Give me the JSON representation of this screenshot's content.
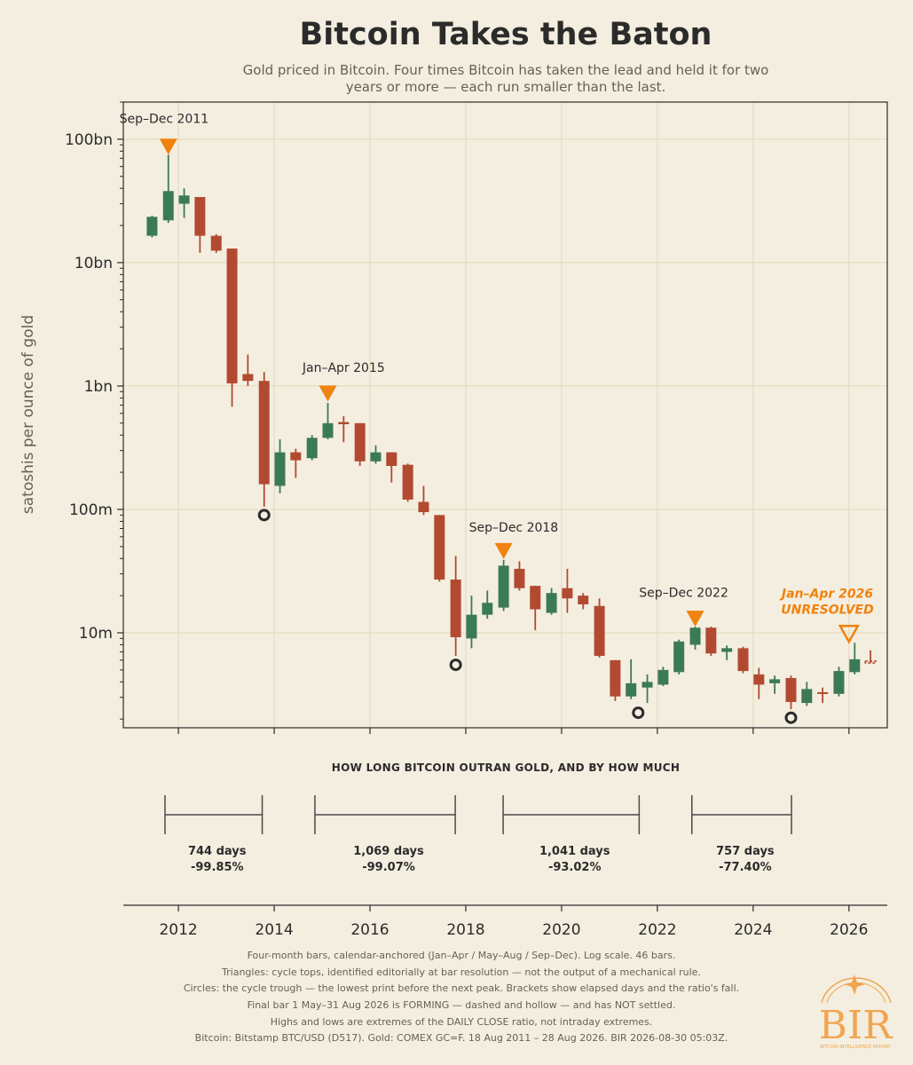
{
  "title": "Bitcoin Takes the Baton",
  "subtitle_lines": [
    "Gold priced in Bitcoin. Four times Bitcoin has taken the lead and held it for two",
    "years or more — each run smaller than the last."
  ],
  "colors": {
    "up": "#3b7a57",
    "down": "#b24a31",
    "peak": "#f0820f",
    "trough": "#2b2b2b",
    "background": "#f4eee0",
    "grid": "#e4d8b8"
  },
  "chart_data": {
    "type": "candlestick",
    "ylabel": "satoshis per ounce of gold",
    "yscale": "log",
    "ylim": [
      1700000.0,
      200000000000.0
    ],
    "xlim": [
      2010.85,
      2026.8
    ],
    "x_ticks": [
      2012,
      2014,
      2016,
      2018,
      2020,
      2022,
      2024,
      2026
    ],
    "x_tick_labels": [
      "2012",
      "2014",
      "2016",
      "2018",
      "2020",
      "2022",
      "2024",
      "2026"
    ],
    "y_ticks": [
      10000000.0,
      100000000.0,
      1000000000.0,
      10000000000.0,
      100000000000.0
    ],
    "y_tick_labels": [
      "10m",
      "100m",
      "1bn",
      "10bn",
      "100bn"
    ],
    "bar_dates": [
      "2011-05",
      "2011-09",
      "2012-01",
      "2012-05",
      "2012-09",
      "2013-01",
      "2013-05",
      "2013-09",
      "2014-01",
      "2014-05",
      "2014-09",
      "2015-01",
      "2015-05",
      "2015-09",
      "2016-01",
      "2016-05",
      "2016-09",
      "2017-01",
      "2017-05",
      "2017-09",
      "2018-01",
      "2018-05",
      "2018-09",
      "2019-01",
      "2019-05",
      "2019-09",
      "2020-01",
      "2020-05",
      "2020-09",
      "2021-01",
      "2021-05",
      "2021-09",
      "2022-01",
      "2022-05",
      "2022-09",
      "2023-01",
      "2023-05",
      "2023-09",
      "2024-01",
      "2024-05",
      "2024-09",
      "2025-01",
      "2025-05",
      "2025-09",
      "2026-01",
      "2026-05"
    ],
    "candles": [
      {
        "x": 2011.45,
        "o": 16500000000.0,
        "h": 24000000000.0,
        "l": 16000000000.0,
        "c": 23500000000.0
      },
      {
        "x": 2011.79,
        "o": 22000000000.0,
        "h": 75000000000.0,
        "l": 21000000000.0,
        "c": 38000000000.0
      },
      {
        "x": 2012.12,
        "o": 30000000000.0,
        "h": 40000000000.0,
        "l": 23000000000.0,
        "c": 35000000000.0
      },
      {
        "x": 2012.45,
        "o": 34000000000.0,
        "h": 34000000000.0,
        "l": 12000000000.0,
        "c": 16500000000.0
      },
      {
        "x": 2012.79,
        "o": 16500000000.0,
        "h": 17000000000.0,
        "l": 12000000000.0,
        "c": 12500000000.0
      },
      {
        "x": 2013.12,
        "o": 13000000000.0,
        "h": 13000000000.0,
        "l": 680000000.0,
        "c": 1050000000.0
      },
      {
        "x": 2013.45,
        "o": 1250000000.0,
        "h": 1800000000.0,
        "l": 1000000000.0,
        "c": 1100000000.0
      },
      {
        "x": 2013.79,
        "o": 1100000000.0,
        "h": 1300000000.0,
        "l": 105000000.0,
        "c": 160000000.0
      },
      {
        "x": 2014.12,
        "o": 155000000.0,
        "h": 370000000.0,
        "l": 135000000.0,
        "c": 290000000.0
      },
      {
        "x": 2014.45,
        "o": 290000000.0,
        "h": 310000000.0,
        "l": 180000000.0,
        "c": 250000000.0
      },
      {
        "x": 2014.79,
        "o": 260000000.0,
        "h": 400000000.0,
        "l": 250000000.0,
        "c": 380000000.0
      },
      {
        "x": 2015.12,
        "o": 380000000.0,
        "h": 730000000.0,
        "l": 370000000.0,
        "c": 500000000.0
      },
      {
        "x": 2015.45,
        "o": 510000000.0,
        "h": 570000000.0,
        "l": 350000000.0,
        "c": 490000000.0
      },
      {
        "x": 2015.79,
        "o": 500000000.0,
        "h": 500000000.0,
        "l": 225000000.0,
        "c": 245000000.0
      },
      {
        "x": 2016.12,
        "o": 245000000.0,
        "h": 330000000.0,
        "l": 235000000.0,
        "c": 290000000.0
      },
      {
        "x": 2016.45,
        "o": 290000000.0,
        "h": 290000000.0,
        "l": 165000000.0,
        "c": 225000000.0
      },
      {
        "x": 2016.79,
        "o": 230000000.0,
        "h": 235000000.0,
        "l": 115000000.0,
        "c": 120000000.0
      },
      {
        "x": 2017.12,
        "o": 115000000.0,
        "h": 155000000.0,
        "l": 90000000.0,
        "c": 95000000.0
      },
      {
        "x": 2017.45,
        "o": 90000000.0,
        "h": 90000000.0,
        "l": 26000000.0,
        "c": 27000000.0
      },
      {
        "x": 2017.79,
        "o": 27000000.0,
        "h": 42000000.0,
        "l": 6500000.0,
        "c": 9200000.0
      },
      {
        "x": 2018.12,
        "o": 9000000.0,
        "h": 20000000.0,
        "l": 7500000.0,
        "c": 14000000.0
      },
      {
        "x": 2018.45,
        "o": 14000000.0,
        "h": 22000000.0,
        "l": 13000000.0,
        "c": 17500000.0
      },
      {
        "x": 2018.79,
        "o": 16000000.0,
        "h": 39000000.0,
        "l": 15000000.0,
        "c": 35000000.0
      },
      {
        "x": 2019.12,
        "o": 33000000.0,
        "h": 38000000.0,
        "l": 22000000.0,
        "c": 23000000.0
      },
      {
        "x": 2019.45,
        "o": 24000000.0,
        "h": 24000000.0,
        "l": 10500000.0,
        "c": 15500000.0
      },
      {
        "x": 2019.79,
        "o": 14500000.0,
        "h": 23000000.0,
        "l": 14000000.0,
        "c": 21000000.0
      },
      {
        "x": 2020.12,
        "o": 23000000.0,
        "h": 33000000.0,
        "l": 14500000.0,
        "c": 19000000.0
      },
      {
        "x": 2020.45,
        "o": 20000000.0,
        "h": 21000000.0,
        "l": 15500000.0,
        "c": 17000000.0
      },
      {
        "x": 2020.79,
        "o": 16500000.0,
        "h": 19000000.0,
        "l": 6300000.0,
        "c": 6500000.0
      },
      {
        "x": 2021.12,
        "o": 6000000.0,
        "h": 6000000.0,
        "l": 2800000.0,
        "c": 3050000.0
      },
      {
        "x": 2021.45,
        "o": 3050000.0,
        "h": 6100000.0,
        "l": 2900000.0,
        "c": 3900000.0
      },
      {
        "x": 2021.79,
        "o": 3600000.0,
        "h": 4600000.0,
        "l": 2700000.0,
        "c": 4000000.0
      },
      {
        "x": 2022.12,
        "o": 3800000.0,
        "h": 5300000.0,
        "l": 3700000.0,
        "c": 5000000.0
      },
      {
        "x": 2022.45,
        "o": 4800000.0,
        "h": 8800000.0,
        "l": 4600000.0,
        "c": 8500000.0
      },
      {
        "x": 2022.79,
        "o": 8000000.0,
        "h": 11200000.0,
        "l": 7300000.0,
        "c": 11000000.0
      },
      {
        "x": 2023.12,
        "o": 11000000.0,
        "h": 11200000.0,
        "l": 6500000.0,
        "c": 6800000.0
      },
      {
        "x": 2023.45,
        "o": 7000000.0,
        "h": 7900000.0,
        "l": 6000000.0,
        "c": 7500000.0
      },
      {
        "x": 2023.79,
        "o": 7500000.0,
        "h": 7700000.0,
        "l": 4700000.0,
        "c": 4900000.0
      },
      {
        "x": 2024.12,
        "o": 4600000.0,
        "h": 5200000.0,
        "l": 2900000.0,
        "c": 3800000.0
      },
      {
        "x": 2024.45,
        "o": 3900000.0,
        "h": 4500000.0,
        "l": 3200000.0,
        "c": 4200000.0
      },
      {
        "x": 2024.79,
        "o": 4300000.0,
        "h": 4500000.0,
        "l": 2400000.0,
        "c": 2750000.0
      },
      {
        "x": 2025.12,
        "o": 2700000.0,
        "h": 4000000.0,
        "l": 2550000.0,
        "c": 3500000.0
      },
      {
        "x": 2025.45,
        "o": 3300000.0,
        "h": 3600000.0,
        "l": 2700000.0,
        "c": 3200000.0
      },
      {
        "x": 2025.79,
        "o": 3200000.0,
        "h": 5300000.0,
        "l": 3050000.0,
        "c": 4900000.0
      },
      {
        "x": 2026.12,
        "o": 4800000.0,
        "h": 8300000.0,
        "l": 4600000.0,
        "c": 6100000.0
      },
      {
        "x": 2026.45,
        "o": 5900000.0,
        "h": 7200000.0,
        "l": 5700000.0,
        "c": 5700000.0,
        "forming": true
      }
    ],
    "peaks": [
      {
        "x": 2011.79,
        "y": 87000000000.0,
        "label": "Sep–Dec 2011",
        "label_x": 2011.7,
        "label_y": 135000000000.0
      },
      {
        "x": 2015.12,
        "y": 870000000.0,
        "label": "Jan–Apr 2015",
        "label_x": 2015.45,
        "label_y": 1300000000.0
      },
      {
        "x": 2018.79,
        "y": 46000000.0,
        "label": "Sep–Dec 2018",
        "label_x": 2019.0,
        "label_y": 66000000.0
      },
      {
        "x": 2022.79,
        "y": 13000000.0,
        "label": "Sep–Dec 2022",
        "label_x": 2022.55,
        "label_y": 19500000.0
      },
      {
        "x": 2026.0,
        "y": 9800000.0,
        "label_lines": [
          "Jan–Apr 2026",
          "UNRESOLVED"
        ],
        "label_x": 2025.55,
        "label_y": 19500000.0,
        "open": true
      }
    ],
    "troughs": [
      {
        "x": 2013.79,
        "y": 90000000.0
      },
      {
        "x": 2017.79,
        "y": 5500000.0
      },
      {
        "x": 2021.6,
        "y": 2250000.0
      },
      {
        "x": 2024.79,
        "y": 2050000.0
      }
    ],
    "brackets": [
      {
        "x0": 2011.72,
        "x1": 2013.75,
        "days": "744 days",
        "pct": "-99.85%"
      },
      {
        "x0": 2014.85,
        "x1": 2017.78,
        "days": "1,069 days",
        "pct": "-99.07%"
      },
      {
        "x0": 2018.78,
        "x1": 2021.62,
        "days": "1,041 days",
        "pct": "-93.02%"
      },
      {
        "x0": 2022.72,
        "x1": 2024.8,
        "days": "757 days",
        "pct": "-77.40%"
      }
    ],
    "brackets_title": "HOW LONG BITCOIN OUTRAN GOLD, AND BY HOW MUCH"
  },
  "footer_lines": [
    "Four-month bars, calendar-anchored (Jan–Apr / May–Aug / Sep–Dec).  Log scale.  46 bars.",
    "Triangles: cycle tops, identified editorially at bar resolution — not the output of a mechanical rule.",
    "Circles: the cycle trough — the lowest print before the next peak. Brackets show elapsed days and the ratio's fall.",
    "Final bar 1 May–31 Aug 2026 is FORMING — dashed and hollow — and has NOT settled.",
    "Highs and lows are extremes of the DAILY CLOSE ratio, not intraday extremes.",
    "Bitcoin: Bitstamp BTC/USD (D517).  Gold: COMEX GC=F.  18 Aug 2011 – 28 Aug 2026.  BIR 2026-08-30 05:03Z."
  ],
  "logo": {
    "text": "BIR",
    "subtext": "BITCOIN INTELLIGENCE REPORT"
  }
}
